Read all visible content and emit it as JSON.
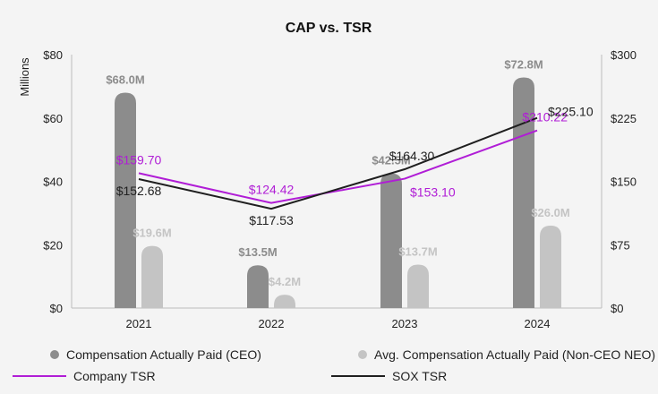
{
  "chart_data": {
    "type": "bar",
    "title": "CAP vs. TSR",
    "categories": [
      "2021",
      "2022",
      "2023",
      "2024"
    ],
    "left_axis": {
      "label": "Millions",
      "min": 0,
      "max": 80,
      "ticks": [
        0,
        20,
        40,
        60,
        80
      ],
      "tick_labels": [
        "$0",
        "$20",
        "$40",
        "$60",
        "$80"
      ]
    },
    "right_axis": {
      "min": 0,
      "max": 300,
      "ticks": [
        0,
        75,
        150,
        225,
        300
      ],
      "tick_labels": [
        "$0",
        "$75",
        "$150",
        "$225",
        "$300"
      ]
    },
    "series": [
      {
        "name": "Compensation Actually Paid (CEO)",
        "type": "bar",
        "axis": "left",
        "color": "#8c8c8c",
        "values": [
          68.0,
          13.5,
          42.5,
          72.8
        ],
        "labels": [
          "$68.0M",
          "$13.5M",
          "$42.5M",
          "$72.8M"
        ]
      },
      {
        "name": "Avg. Compensation Actually Paid (Non-CEO NEO)",
        "type": "bar",
        "axis": "left",
        "color": "#c4c4c4",
        "values": [
          19.6,
          4.2,
          13.7,
          26.0
        ],
        "labels": [
          "$19.6M",
          "$4.2M",
          "$13.7M",
          "$26.0M"
        ]
      },
      {
        "name": "Company TSR",
        "type": "line",
        "axis": "right",
        "color": "#b01dd6",
        "values": [
          159.7,
          124.42,
          153.1,
          210.22
        ],
        "labels": [
          "$159.70",
          "$124.42",
          "$153.10",
          "$210.22"
        ]
      },
      {
        "name": "SOX TSR",
        "type": "line",
        "axis": "right",
        "color": "#1f1f1f",
        "values": [
          152.68,
          117.53,
          164.3,
          225.1
        ],
        "labels": [
          "$152.68",
          "$117.53",
          "$164.30",
          "$225.10"
        ]
      }
    ],
    "legend_labels": {
      "ceo": "Compensation Actually Paid (CEO)",
      "neo": "Avg. Compensation Actually Paid (Non-CEO NEO)",
      "company": "Company TSR",
      "sox": "SOX TSR"
    }
  }
}
